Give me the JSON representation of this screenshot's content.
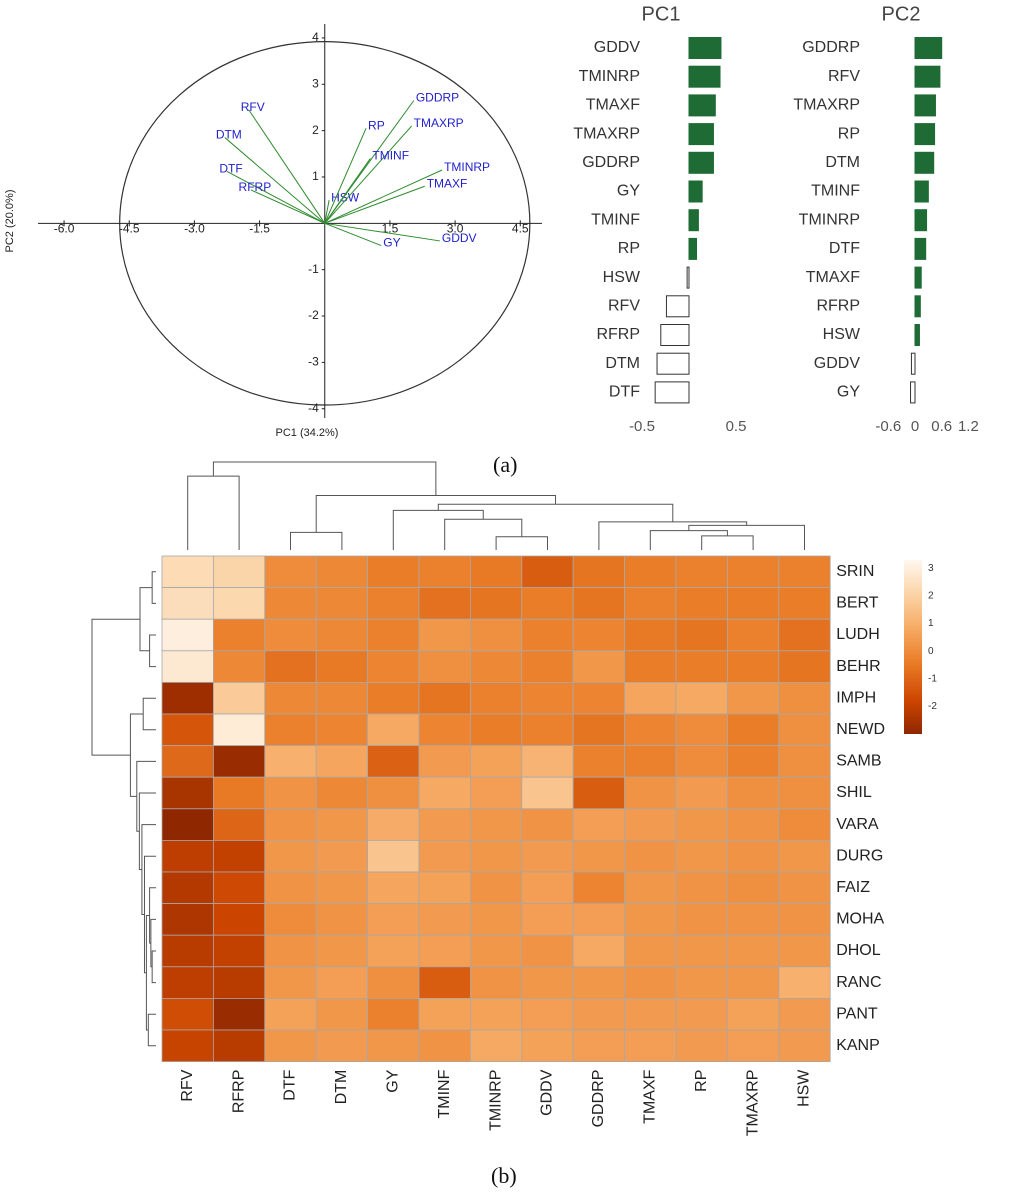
{
  "panel_labels": {
    "a": "(a)",
    "b": "(b)"
  },
  "chart_data": [
    {
      "type": "scatter",
      "subtype": "pca-biplot",
      "xlabel": "PC1 (34.2%)",
      "ylabel": "PC2 (20.0%)",
      "xlim": [
        -6.6,
        5.0
      ],
      "ylim": [
        -4.2,
        4.3
      ],
      "x_ticks": [
        {
          "value": -6.0,
          "label": "-6.0"
        },
        {
          "value": -4.5,
          "label": "-4.5"
        },
        {
          "value": -3.0,
          "label": "-3.0"
        },
        {
          "value": -1.5,
          "label": "-1.5"
        },
        {
          "value": 1.5,
          "label": "1.5"
        },
        {
          "value": 3.0,
          "label": "3.0"
        },
        {
          "value": 4.5,
          "label": "4.5"
        }
      ],
      "y_ticks": [
        {
          "value": 4,
          "label": "4"
        },
        {
          "value": 3,
          "label": "3"
        },
        {
          "value": 2,
          "label": "2"
        },
        {
          "value": 1,
          "label": "1"
        },
        {
          "value": -1,
          "label": "-1"
        },
        {
          "value": -2,
          "label": "-2"
        },
        {
          "value": -3,
          "label": "-3"
        },
        {
          "value": -4,
          "label": "-4"
        }
      ],
      "circle_radius": 4,
      "colors": {
        "vector": "#2e8b2e",
        "label": "#2222cc",
        "axis": "#222222",
        "circle": "#333333"
      },
      "vectors": [
        {
          "name": "RFV",
          "x": -1.75,
          "y": 2.45
        },
        {
          "name": "DTM",
          "x": -2.3,
          "y": 1.85
        },
        {
          "name": "DTF",
          "x": -2.25,
          "y": 1.12
        },
        {
          "name": "RFRP",
          "x": -1.7,
          "y": 0.72
        },
        {
          "name": "HSW",
          "x": 0.1,
          "y": 0.5
        },
        {
          "name": "RP",
          "x": 0.95,
          "y": 2.05
        },
        {
          "name": "GDDRP",
          "x": 2.05,
          "y": 2.65
        },
        {
          "name": "TMAXRP",
          "x": 2.0,
          "y": 2.1
        },
        {
          "name": "TMINF",
          "x": 1.05,
          "y": 1.4
        },
        {
          "name": "TMINRP",
          "x": 2.7,
          "y": 1.15
        },
        {
          "name": "TMAXF",
          "x": 2.3,
          "y": 0.8
        },
        {
          "name": "GY",
          "x": 1.3,
          "y": -0.48
        },
        {
          "name": "GDDV",
          "x": 2.65,
          "y": -0.38
        }
      ]
    },
    {
      "type": "bar",
      "orientation": "horizontal",
      "title": "PC1",
      "xlim": [
        -0.6,
        0.7
      ],
      "x_ticks": [
        {
          "value": -0.5,
          "label": "-0.5"
        },
        {
          "value": 0.5,
          "label": "0.5"
        }
      ],
      "categories": [
        "GDDV",
        "TMINRP",
        "TMAXF",
        "TMAXRP",
        "GDDRP",
        "GY",
        "TMINF",
        "RP",
        "HSW",
        "RFV",
        "RFRP",
        "DTM",
        "DTF"
      ],
      "values": [
        0.34,
        0.33,
        0.28,
        0.26,
        0.26,
        0.14,
        0.1,
        0.08,
        -0.02,
        -0.24,
        -0.3,
        -0.34,
        -0.36
      ],
      "colors": {
        "positive": "#1e6b35",
        "negative": "#ffffff",
        "outline": "#333333"
      }
    },
    {
      "type": "bar",
      "orientation": "horizontal",
      "title": "PC2",
      "xlim": [
        -0.6,
        1.2
      ],
      "x_ticks": [
        {
          "value": -0.6,
          "label": "-0.6"
        },
        {
          "value": 0,
          "label": "0"
        },
        {
          "value": 0.6,
          "label": "0.6"
        },
        {
          "value": 1.2,
          "label": "1.2"
        }
      ],
      "categories": [
        "GDDRP",
        "RFV",
        "TMAXRP",
        "RP",
        "DTM",
        "TMINF",
        "TMINRP",
        "DTF",
        "TMAXF",
        "RFRP",
        "HSW",
        "GDDV",
        "GY"
      ],
      "values": [
        0.6,
        0.56,
        0.46,
        0.44,
        0.42,
        0.3,
        0.26,
        0.24,
        0.14,
        0.12,
        0.1,
        -0.08,
        -0.1
      ],
      "colors": {
        "positive": "#1e6b35",
        "negative": "#ffffff",
        "outline": "#333333"
      }
    },
    {
      "type": "heatmap",
      "rows": [
        "SRIN",
        "BERT",
        "LUDH",
        "BEHR",
        "IMPH",
        "NEWD",
        "SAMB",
        "SHIL",
        "VARA",
        "DURG",
        "FAIZ",
        "MOHA",
        "DHOL",
        "RANC",
        "PANT",
        "KANP"
      ],
      "columns": [
        "RFV",
        "RFRP",
        "DTF",
        "DTM",
        "GY",
        "TMINF",
        "TMINRP",
        "GDDV",
        "GDDRP",
        "TMAXF",
        "RP",
        "TMAXRP",
        "HSW"
      ],
      "values": [
        [
          2.3,
          2.1,
          0.0,
          -0.1,
          -0.4,
          -0.3,
          -0.5,
          -1.2,
          -0.6,
          -0.4,
          -0.3,
          -0.3,
          -0.3
        ],
        [
          2.4,
          2.2,
          -0.1,
          -0.1,
          -0.3,
          -0.7,
          -0.6,
          -0.4,
          -0.6,
          -0.3,
          -0.4,
          -0.4,
          -0.4
        ],
        [
          3.0,
          -0.3,
          0.0,
          -0.1,
          -0.3,
          0.3,
          0.1,
          -0.3,
          -0.2,
          -0.5,
          -0.6,
          -0.3,
          -0.7
        ],
        [
          2.8,
          -0.1,
          -0.7,
          -0.5,
          -0.2,
          0.1,
          -0.1,
          -0.3,
          0.3,
          -0.4,
          -0.4,
          -0.4,
          -0.6
        ],
        [
          -2.7,
          1.8,
          -0.1,
          -0.1,
          -0.4,
          -0.6,
          -0.3,
          -0.2,
          -0.2,
          0.7,
          0.8,
          0.3,
          0.1
        ],
        [
          -1.4,
          2.9,
          -0.3,
          -0.2,
          0.8,
          -0.2,
          -0.4,
          -0.3,
          -0.6,
          -0.2,
          0.0,
          -0.4,
          0.1
        ],
        [
          -0.9,
          -2.8,
          1.0,
          0.7,
          -1.1,
          0.4,
          0.6,
          1.1,
          -0.3,
          -0.3,
          0.0,
          -0.3,
          0.1
        ],
        [
          -2.5,
          -0.5,
          0.2,
          -0.1,
          0.1,
          0.8,
          0.5,
          1.6,
          -1.2,
          0.2,
          0.4,
          0.1,
          0.1
        ],
        [
          -3.0,
          -1.0,
          0.2,
          0.3,
          0.9,
          0.4,
          0.3,
          0.2,
          0.5,
          0.4,
          0.3,
          0.2,
          0.0
        ],
        [
          -2.1,
          -2.0,
          0.3,
          0.4,
          1.6,
          0.4,
          0.3,
          0.4,
          0.3,
          0.2,
          0.3,
          0.2,
          0.3
        ],
        [
          -2.3,
          -1.7,
          0.2,
          0.3,
          0.7,
          0.6,
          0.2,
          0.5,
          -0.2,
          0.3,
          0.2,
          0.1,
          0.2
        ],
        [
          -2.4,
          -1.8,
          0.0,
          0.2,
          0.5,
          0.4,
          0.3,
          0.5,
          0.5,
          0.3,
          0.2,
          0.2,
          0.2
        ],
        [
          -2.2,
          -2.0,
          0.2,
          0.3,
          0.6,
          0.5,
          0.3,
          0.2,
          0.8,
          0.3,
          0.3,
          0.3,
          0.3
        ],
        [
          -2.1,
          -2.2,
          0.3,
          0.5,
          0.1,
          -1.2,
          0.2,
          0.3,
          0.3,
          0.2,
          0.3,
          0.3,
          1.0
        ],
        [
          -1.6,
          -2.8,
          0.6,
          0.3,
          -0.3,
          0.6,
          0.6,
          0.5,
          0.4,
          0.4,
          0.4,
          0.6,
          0.4
        ],
        [
          -1.9,
          -2.2,
          0.3,
          0.4,
          0.3,
          0.2,
          0.8,
          0.6,
          0.5,
          0.5,
          0.4,
          0.5,
          0.4
        ]
      ],
      "color_scale": {
        "min": -3,
        "max": 3.3,
        "stops": [
          {
            "v": -3,
            "c": "#8f2700"
          },
          {
            "v": -1.8,
            "c": "#cc4500"
          },
          {
            "v": -0.4,
            "c": "#ea7d28"
          },
          {
            "v": 0.8,
            "c": "#f6a962"
          },
          {
            "v": 2.0,
            "c": "#fbd2a4"
          },
          {
            "v": 3.3,
            "c": "#fff7ee"
          }
        ]
      },
      "legend_ticks": [
        {
          "value": 3,
          "label": "3"
        },
        {
          "value": 2,
          "label": "2"
        },
        {
          "value": 1,
          "label": "1"
        },
        {
          "value": 0,
          "label": "0"
        },
        {
          "value": -1,
          "label": "-1"
        },
        {
          "value": -2,
          "label": "-2"
        }
      ],
      "col_dendrogram": [
        {
          "a": 0,
          "b": 1,
          "h": 0.84
        },
        {
          "a": 6,
          "b": 7,
          "h": 0.15
        },
        {
          "a": 5,
          "b": 14,
          "h": 0.35
        },
        {
          "a": 4,
          "b": 15,
          "h": 0.45
        },
        {
          "a": 10,
          "b": 11,
          "h": 0.16
        },
        {
          "a": 9,
          "b": 17,
          "h": 0.22
        },
        {
          "a": 12,
          "b": 18,
          "h": 0.28
        },
        {
          "a": 8,
          "b": 19,
          "h": 0.32
        },
        {
          "a": 16,
          "b": 20,
          "h": 0.52
        },
        {
          "a": 2,
          "b": 3,
          "h": 0.2
        },
        {
          "a": 22,
          "b": 21,
          "h": 0.62
        },
        {
          "a": 13,
          "b": 23,
          "h": 1.0
        }
      ],
      "row_dendrogram": [
        {
          "a": 0,
          "b": 1,
          "h": 0.06
        },
        {
          "a": 2,
          "b": 3,
          "h": 0.1
        },
        {
          "a": 16,
          "b": 17,
          "h": 0.25
        },
        {
          "a": 4,
          "b": 5,
          "h": 0.2
        },
        {
          "a": 12,
          "b": 13,
          "h": 0.06
        },
        {
          "a": 11,
          "b": 20,
          "h": 0.08
        },
        {
          "a": 10,
          "b": 21,
          "h": 0.1
        },
        {
          "a": 14,
          "b": 15,
          "h": 0.12
        },
        {
          "a": 22,
          "b": 23,
          "h": 0.15
        },
        {
          "a": 9,
          "b": 24,
          "h": 0.18
        },
        {
          "a": 8,
          "b": 25,
          "h": 0.22
        },
        {
          "a": 7,
          "b": 26,
          "h": 0.26
        },
        {
          "a": 6,
          "b": 27,
          "h": 0.3
        },
        {
          "a": 19,
          "b": 28,
          "h": 0.4
        },
        {
          "a": 18,
          "b": 29,
          "h": 1.0
        }
      ]
    }
  ]
}
